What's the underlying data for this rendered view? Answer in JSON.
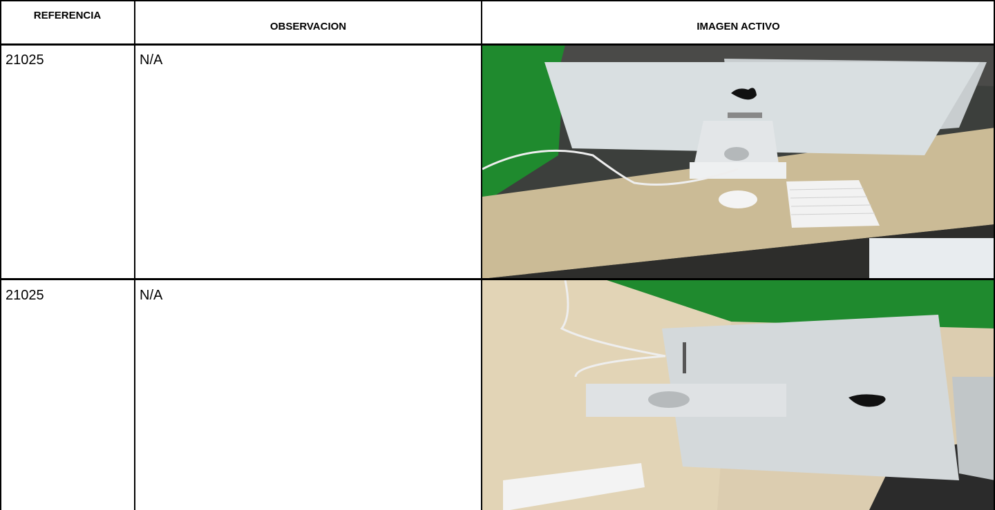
{
  "table": {
    "header": [
      "REFERENCIA",
      "OBSERVACION",
      "IMAGEN ACTIVO"
    ],
    "rows": [
      [
        "21025",
        "N/A"
      ],
      [
        "21025",
        "N/A"
      ]
    ]
  }
}
